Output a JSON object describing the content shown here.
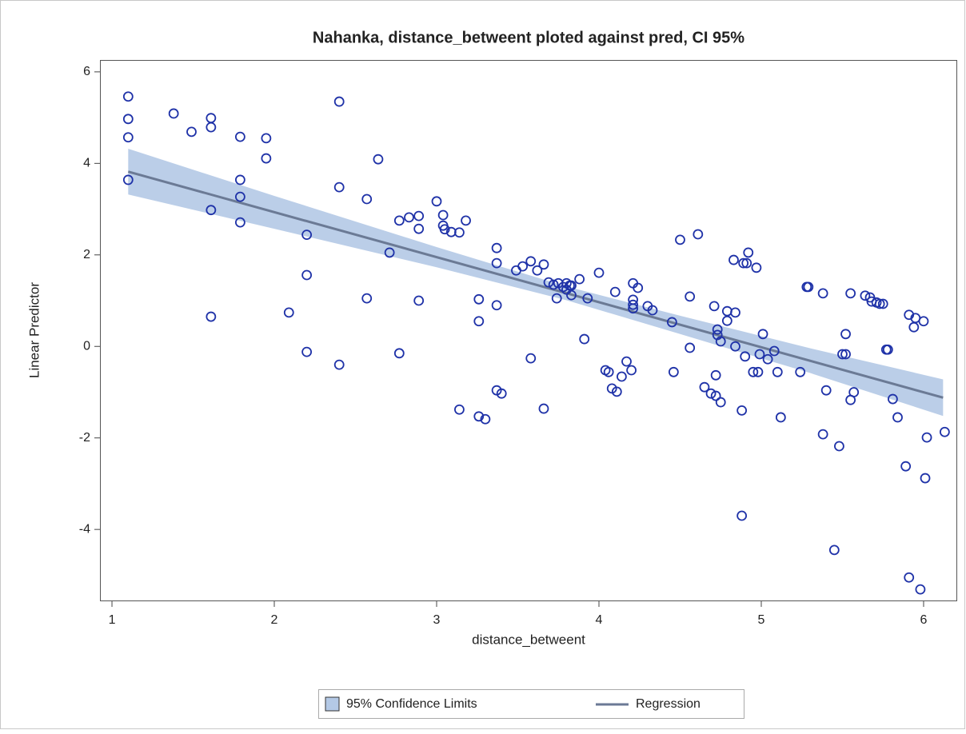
{
  "chart_data": {
    "type": "scatter",
    "title": "Nahanka, distance_betweent ploted against pred, CI 95%",
    "x_label": "distance_betweent",
    "y_label": "Linear Predictor",
    "xlim": [
      0.926,
      6.207
    ],
    "ylim": [
      -5.57,
      6.26
    ],
    "xticks": [
      1,
      2,
      3,
      4,
      5,
      6
    ],
    "yticks": [
      -4,
      -2,
      0,
      2,
      4,
      6
    ],
    "marker_color": "#1f32a8",
    "x": [
      1.1,
      1.1,
      1.1,
      1.1,
      1.38,
      1.49,
      1.61,
      1.61,
      1.61,
      1.61,
      1.79,
      1.79,
      1.79,
      1.79,
      1.95,
      1.95,
      2.09,
      2.2,
      2.2,
      2.2,
      2.4,
      2.4,
      2.4,
      2.57,
      2.57,
      2.64,
      2.71,
      2.77,
      2.77,
      2.83,
      2.89,
      2.89,
      2.89,
      3.0,
      3.04,
      3.04,
      3.05,
      3.09,
      3.14,
      3.18,
      3.14,
      3.26,
      3.26,
      3.26,
      3.3,
      3.37,
      3.37,
      3.37,
      3.37,
      3.4,
      3.49,
      3.53,
      3.58,
      3.58,
      3.62,
      3.66,
      3.66,
      3.69,
      3.72,
      3.74,
      3.75,
      3.78,
      3.8,
      3.8,
      3.82,
      3.83,
      3.83,
      3.88,
      3.93,
      3.91,
      4.0,
      4.04,
      4.06,
      4.1,
      4.08,
      4.11,
      4.14,
      4.17,
      4.2,
      4.21,
      4.24,
      4.21,
      4.21,
      4.21,
      4.3,
      4.33,
      4.45,
      4.46,
      4.5,
      4.61,
      4.56,
      4.56,
      4.65,
      4.69,
      4.71,
      4.72,
      4.72,
      4.73,
      4.73,
      4.75,
      4.75,
      4.79,
      4.79,
      4.83,
      4.84,
      4.84,
      4.88,
      4.88,
      4.9,
      4.89,
      4.91,
      4.92,
      4.95,
      4.97,
      4.98,
      4.99,
      5.01,
      5.04,
      5.08,
      5.1,
      5.12,
      5.24,
      5.28,
      5.29,
      5.38,
      5.38,
      5.4,
      5.45,
      5.48,
      5.5,
      5.52,
      5.52,
      5.55,
      5.55,
      5.57,
      5.64,
      5.67,
      5.68,
      5.71,
      5.73,
      5.75,
      5.77,
      5.78,
      5.81,
      5.84,
      5.89,
      5.91,
      5.91,
      5.94,
      5.95,
      6.0,
      6.02,
      6.01,
      5.98,
      6.13
    ],
    "values": [
      5.46,
      4.97,
      4.57,
      3.64,
      5.09,
      4.69,
      4.99,
      4.79,
      2.98,
      0.65,
      4.58,
      3.64,
      3.27,
      2.71,
      4.55,
      4.11,
      0.74,
      2.44,
      1.56,
      -0.12,
      5.35,
      3.48,
      -0.4,
      3.22,
      1.05,
      4.09,
      2.05,
      2.75,
      -0.15,
      2.82,
      2.85,
      2.57,
      1.0,
      3.17,
      2.87,
      2.64,
      2.56,
      2.5,
      2.49,
      2.75,
      -1.38,
      1.03,
      0.55,
      -1.53,
      -1.59,
      2.15,
      1.82,
      0.9,
      -0.96,
      -1.03,
      1.66,
      1.75,
      1.86,
      -0.26,
      1.66,
      1.79,
      -1.36,
      1.4,
      1.35,
      1.05,
      1.38,
      1.3,
      1.38,
      1.24,
      1.33,
      1.33,
      1.12,
      1.47,
      1.05,
      0.16,
      1.61,
      -0.52,
      -0.56,
      1.19,
      -0.92,
      -0.99,
      -0.66,
      -0.33,
      -0.52,
      1.38,
      1.28,
      1.02,
      0.91,
      0.83,
      0.88,
      0.79,
      0.53,
      -0.56,
      2.33,
      2.45,
      1.09,
      -0.03,
      -0.89,
      -1.03,
      0.88,
      -1.08,
      -0.63,
      0.37,
      0.25,
      0.11,
      -1.22,
      0.77,
      0.56,
      1.89,
      0.74,
      0.0,
      -3.7,
      -1.4,
      -0.22,
      1.82,
      1.82,
      2.05,
      -0.56,
      1.72,
      -0.56,
      -0.17,
      0.27,
      -0.28,
      -0.1,
      -0.56,
      -1.55,
      -0.56,
      1.3,
      1.3,
      1.16,
      -1.92,
      -0.96,
      -4.45,
      -2.18,
      -0.17,
      -0.17,
      0.27,
      1.16,
      -1.17,
      -1.0,
      1.11,
      1.07,
      0.98,
      0.96,
      0.93,
      0.93,
      -0.07,
      -0.07,
      -1.15,
      -1.55,
      -2.62,
      0.69,
      -5.05,
      0.42,
      0.62,
      0.55,
      -1.99,
      -2.88,
      -5.31,
      -1.87
    ],
    "confidence_band": {
      "name": "95% Confidence Limits",
      "color": "#b4c9e6",
      "x": [
        1.1,
        2,
        3,
        3.8,
        4.5,
        5.3,
        6.12
      ],
      "upper": [
        4.32,
        3.29,
        2.17,
        1.31,
        0.67,
        -0.04,
        -0.72
      ],
      "lower": [
        3.32,
        2.57,
        1.73,
        1.01,
        0.27,
        -0.58,
        -1.52
      ]
    },
    "regression": {
      "name": "Regression",
      "color": "#6b7a95",
      "x": [
        1.1,
        6.12
      ],
      "values": [
        3.82,
        -1.12
      ]
    }
  }
}
